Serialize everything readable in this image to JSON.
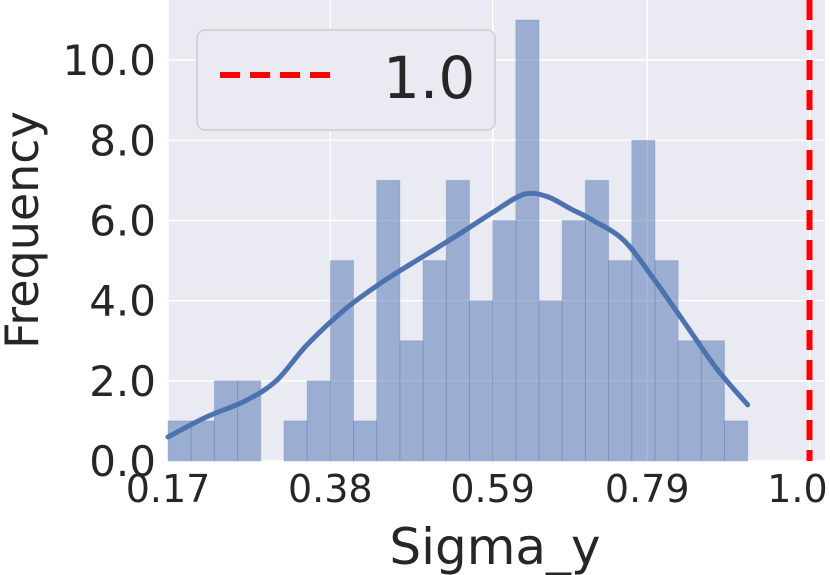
{
  "chart_data": {
    "type": "bar",
    "subtype": "histogram-with-kde",
    "xlabel": "Sigma_y",
    "ylabel": "Frequency",
    "xlim": [
      0.17,
      1.02
    ],
    "ylim": [
      0,
      11.5
    ],
    "xticks": [
      0.17,
      0.38,
      0.59,
      0.79,
      1.0
    ],
    "xtick_labels": [
      "0.17",
      "0.38",
      "0.59",
      "0.79",
      "1.00"
    ],
    "yticks": [
      0,
      2,
      4,
      6,
      8,
      10
    ],
    "ytick_labels": [
      "0.0",
      "2.0",
      "4.0",
      "6.0",
      "8.0",
      "10.0"
    ],
    "grid": true,
    "background": "#eaeaf2",
    "bar_color": "#4c72b0",
    "bins": [
      {
        "x0": 0.17,
        "x1": 0.2,
        "count": 1
      },
      {
        "x0": 0.2,
        "x1": 0.23,
        "count": 1
      },
      {
        "x0": 0.23,
        "x1": 0.26,
        "count": 2
      },
      {
        "x0": 0.26,
        "x1": 0.29,
        "count": 2
      },
      {
        "x0": 0.29,
        "x1": 0.32,
        "count": 0
      },
      {
        "x0": 0.32,
        "x1": 0.35,
        "count": 1
      },
      {
        "x0": 0.35,
        "x1": 0.38,
        "count": 2
      },
      {
        "x0": 0.38,
        "x1": 0.41,
        "count": 5
      },
      {
        "x0": 0.41,
        "x1": 0.44,
        "count": 1
      },
      {
        "x0": 0.44,
        "x1": 0.47,
        "count": 7
      },
      {
        "x0": 0.47,
        "x1": 0.5,
        "count": 3
      },
      {
        "x0": 0.5,
        "x1": 0.53,
        "count": 5
      },
      {
        "x0": 0.53,
        "x1": 0.56,
        "count": 7
      },
      {
        "x0": 0.56,
        "x1": 0.59,
        "count": 4
      },
      {
        "x0": 0.59,
        "x1": 0.62,
        "count": 6
      },
      {
        "x0": 0.62,
        "x1": 0.65,
        "count": 11
      },
      {
        "x0": 0.65,
        "x1": 0.68,
        "count": 4
      },
      {
        "x0": 0.68,
        "x1": 0.71,
        "count": 6
      },
      {
        "x0": 0.71,
        "x1": 0.74,
        "count": 7
      },
      {
        "x0": 0.74,
        "x1": 0.77,
        "count": 5
      },
      {
        "x0": 0.77,
        "x1": 0.8,
        "count": 8
      },
      {
        "x0": 0.8,
        "x1": 0.83,
        "count": 5
      },
      {
        "x0": 0.83,
        "x1": 0.86,
        "count": 3
      },
      {
        "x0": 0.86,
        "x1": 0.89,
        "count": 3
      },
      {
        "x0": 0.89,
        "x1": 0.92,
        "count": 1
      }
    ],
    "kde": {
      "color": "#4c72b0",
      "x": [
        0.17,
        0.22,
        0.27,
        0.31,
        0.35,
        0.4,
        0.45,
        0.5,
        0.55,
        0.59,
        0.63,
        0.66,
        0.69,
        0.72,
        0.76,
        0.8,
        0.84,
        0.88,
        0.92
      ],
      "y": [
        0.6,
        1.1,
        1.5,
        2.0,
        2.9,
        3.8,
        4.5,
        5.1,
        5.7,
        6.2,
        6.65,
        6.6,
        6.3,
        6.0,
        5.5,
        4.5,
        3.4,
        2.3,
        1.4
      ]
    },
    "reference_line": {
      "x": 1.0,
      "label": "1.0",
      "color": "#ff0000",
      "style": "dashed"
    },
    "legend": {
      "placement": "top-left",
      "entries": [
        "1.0"
      ]
    }
  }
}
